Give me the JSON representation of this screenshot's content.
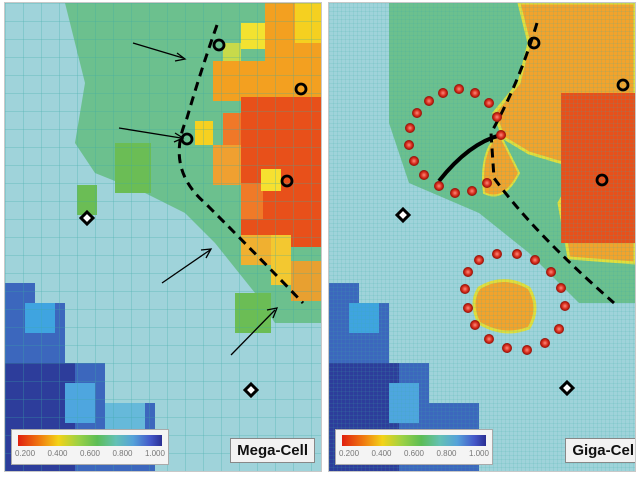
{
  "panels": {
    "left": {
      "label": "Mega-Cell"
    },
    "right": {
      "label": "Giga-Cel"
    }
  },
  "colorbar": {
    "ticks": [
      "0.200",
      "0.400",
      "0.600",
      "0.800",
      "1.000"
    ],
    "colors": [
      "#e02010",
      "#f07a10",
      "#f3d318",
      "#9bd145",
      "#5cbd55",
      "#64c1b5",
      "#55a2d9",
      "#4458c9",
      "#2a2f93"
    ]
  }
}
